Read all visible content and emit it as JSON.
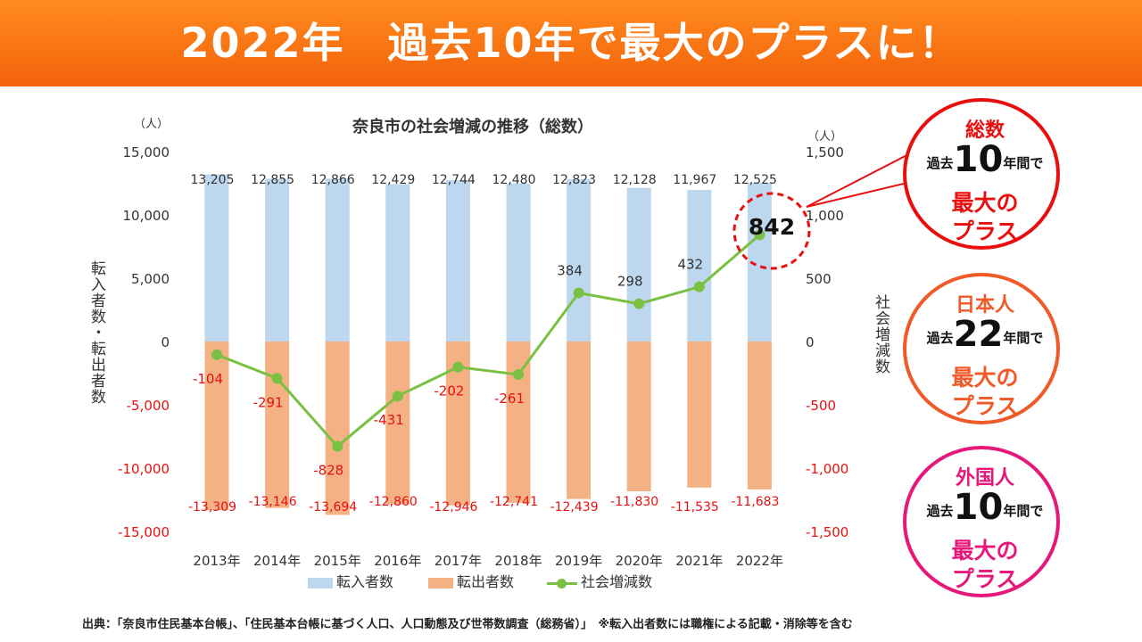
{
  "banner": {
    "title": "2022年　過去10年で最大のプラスに！"
  },
  "chart_data": {
    "type": "bar+line",
    "title": "奈良市の社会増減の推移（総数）",
    "left_axis": {
      "unit": "（人）",
      "label": "転入者数・転出者数",
      "range": [
        -15000,
        15000
      ],
      "ticks": [
        "15,000",
        "10,000",
        "5,000",
        "0",
        "-5,000",
        "-10,000",
        "-15,000"
      ]
    },
    "right_axis": {
      "unit": "（人）",
      "label": "社会増減数",
      "range": [
        -1500,
        1500
      ],
      "ticks": [
        "1,500",
        "1,000",
        "500",
        "0",
        "-500",
        "-1,000",
        "-1,500"
      ]
    },
    "categories": [
      "2013年",
      "2014年",
      "2015年",
      "2016年",
      "2017年",
      "2018年",
      "2019年",
      "2020年",
      "2021年",
      "2022年"
    ],
    "series": [
      {
        "name": "転入者数",
        "type": "bar",
        "color": "#bdd7ee",
        "values": [
          13205,
          12855,
          12866,
          12429,
          12744,
          12480,
          12823,
          12128,
          11967,
          12525
        ],
        "labels": [
          "13,205",
          "12,855",
          "12,866",
          "12,429",
          "12,744",
          "12,480",
          "12,823",
          "12,128",
          "11,967",
          "12,525"
        ]
      },
      {
        "name": "転出者数",
        "type": "bar",
        "color": "#f4b183",
        "values": [
          -13309,
          -13146,
          -13694,
          -12860,
          -12946,
          -12741,
          -12439,
          -11830,
          -11535,
          -11683
        ],
        "labels": [
          "-13,309",
          "-13,146",
          "-13,694",
          "-12,860",
          "-12,946",
          "-12,741",
          "-12,439",
          "-11,830",
          "-11,535",
          "-11,683"
        ]
      },
      {
        "name": "社会増減数",
        "type": "line",
        "axis": "right",
        "color": "#7ac143",
        "values": [
          -104,
          -291,
          -828,
          -431,
          -202,
          -261,
          384,
          298,
          432,
          842
        ],
        "labels": [
          "-104",
          "-291",
          "-828",
          "-431",
          "-202",
          "-261",
          "384",
          "298",
          "432",
          "842"
        ]
      }
    ],
    "highlight": {
      "label": "842"
    }
  },
  "source": "出典：「奈良市住民基本台帳」、「住民基本台帳に基づく人口、人口動態及び世帯数調査（総務省）」　※転入出者数には職権による記載・消除等を含む",
  "badges": [
    {
      "head": "総数",
      "pre": "過去",
      "num": "10",
      "post": "年間で",
      "line1": "最大の",
      "line2": "プラス",
      "color": "#e8100f"
    },
    {
      "head": "日本人",
      "pre": "過去",
      "num": "22",
      "post": "年間で",
      "line1": "最大の",
      "line2": "プラス",
      "color": "#f05a28"
    },
    {
      "head": "外国人",
      "pre": "過去",
      "num": "10",
      "post": "年間で",
      "line1": "最大の",
      "line2": "プラス",
      "color": "#e6197a"
    }
  ]
}
